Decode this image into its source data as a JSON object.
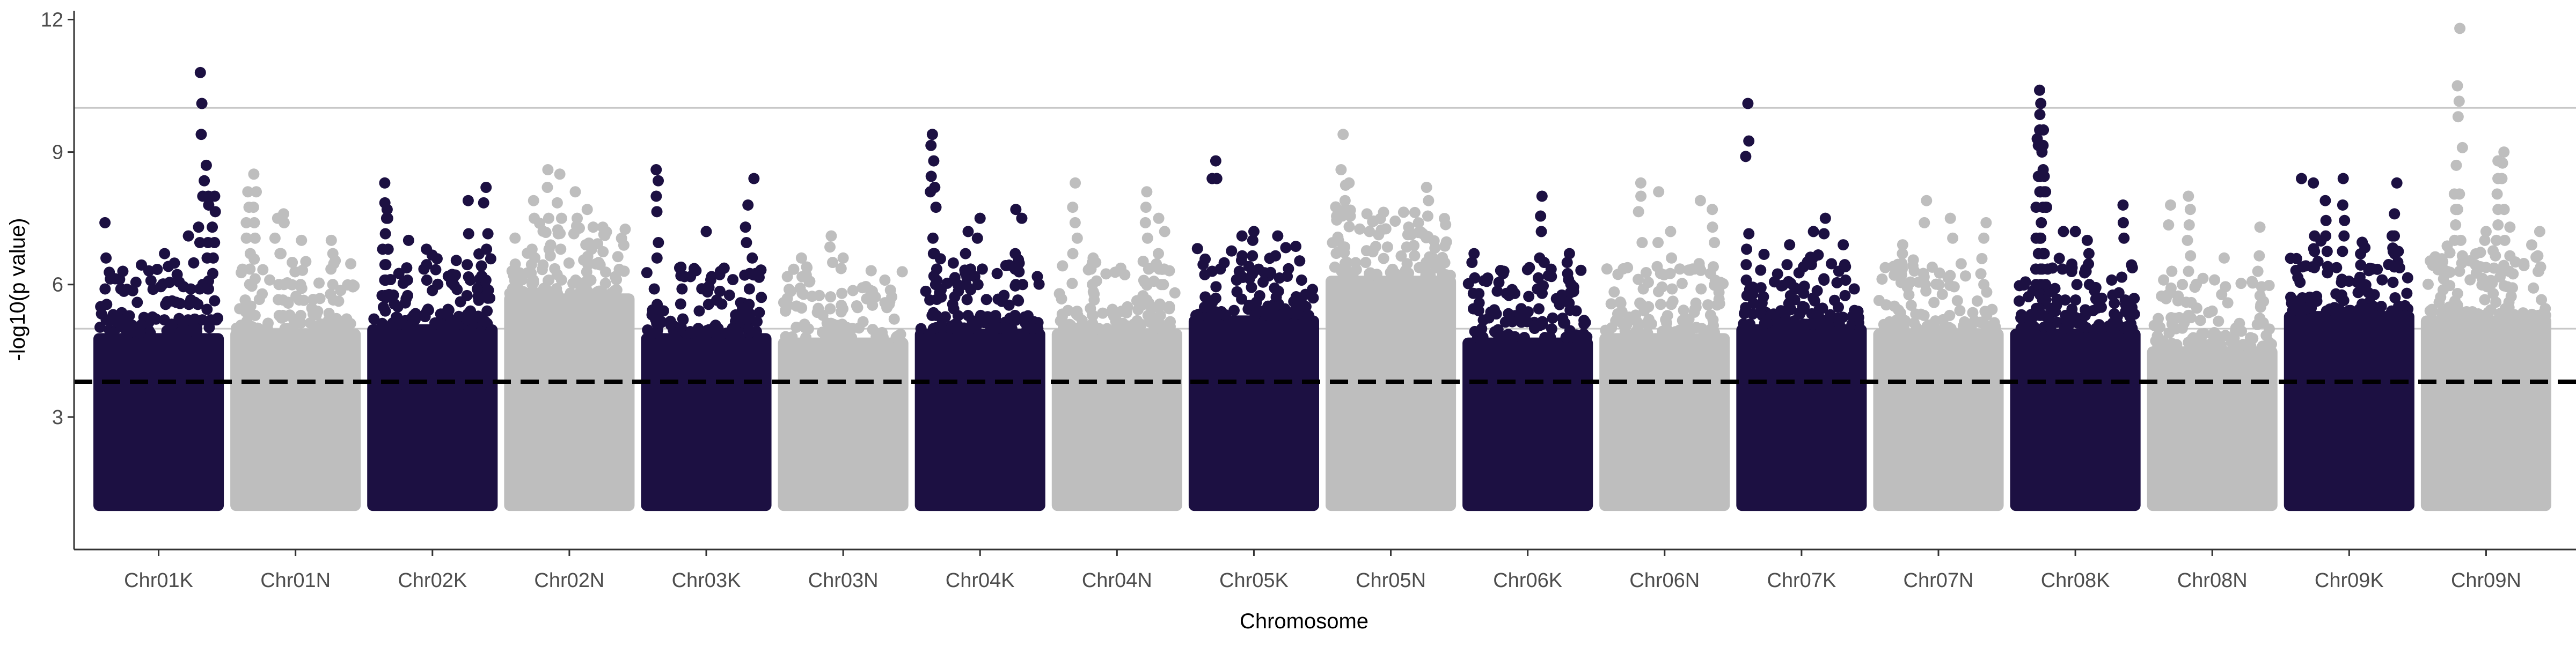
{
  "chart_data": {
    "type": "scatter",
    "title": "",
    "xlabel": "Chromosome",
    "ylabel": "-log10(p value)",
    "ylim": [
      0,
      12.2
    ],
    "yticks": [
      3,
      6,
      9,
      12
    ],
    "grid": false,
    "legend": "none",
    "colors": {
      "dark": "#1c1042",
      "light": "#bebebe",
      "threshold_line": "#000000",
      "reference_line": "#c8c8c8"
    },
    "thresholds": {
      "dashed": 3.8,
      "upper_reference": 10.0,
      "lower_reference": 5.0
    },
    "point_floor": 1.0,
    "categories": [
      "Chr01K",
      "Chr01N",
      "Chr02K",
      "Chr02N",
      "Chr03K",
      "Chr03N",
      "Chr04K",
      "Chr04N",
      "Chr05K",
      "Chr05N",
      "Chr06K",
      "Chr06N",
      "Chr07K",
      "Chr07N",
      "Chr08K",
      "Chr08N",
      "Chr09K",
      "Chr09N"
    ],
    "series": [
      {
        "chromosome": "Chr01K",
        "color": "dark",
        "dense_top": 4.9,
        "peaks": [
          [
            0.05,
            7.4
          ],
          [
            0.2,
            6.3
          ],
          [
            0.55,
            6.7
          ],
          [
            0.75,
            7.1
          ],
          [
            0.85,
            10.8
          ],
          [
            0.9,
            8.7
          ],
          [
            0.92,
            7.8
          ],
          [
            0.97,
            8.0
          ]
        ]
      },
      {
        "chromosome": "Chr01N",
        "color": "light",
        "dense_top": 5.0,
        "peaks": [
          [
            0.1,
            8.1
          ],
          [
            0.15,
            8.5
          ],
          [
            0.35,
            7.5
          ],
          [
            0.4,
            7.6
          ],
          [
            0.55,
            7.0
          ],
          [
            0.8,
            7.0
          ]
        ]
      },
      {
        "chromosome": "Chr02K",
        "color": "dark",
        "dense_top": 5.1,
        "peaks": [
          [
            0.1,
            8.3
          ],
          [
            0.12,
            7.7
          ],
          [
            0.3,
            7.0
          ],
          [
            0.45,
            6.8
          ],
          [
            0.8,
            7.9
          ],
          [
            0.95,
            8.2
          ]
        ]
      },
      {
        "chromosome": "Chr02N",
        "color": "light",
        "dense_top": 5.8,
        "peaks": [
          [
            0.2,
            7.9
          ],
          [
            0.32,
            8.6
          ],
          [
            0.42,
            8.5
          ],
          [
            0.55,
            8.1
          ],
          [
            0.65,
            7.7
          ],
          [
            0.7,
            7.3
          ]
        ]
      },
      {
        "chromosome": "Chr03K",
        "color": "dark",
        "dense_top": 4.9,
        "peaks": [
          [
            0.08,
            8.6
          ],
          [
            0.3,
            6.2
          ],
          [
            0.5,
            7.2
          ],
          [
            0.85,
            7.8
          ],
          [
            0.9,
            8.4
          ]
        ]
      },
      {
        "chromosome": "Chr03N",
        "color": "light",
        "dense_top": 4.8,
        "peaks": [
          [
            0.15,
            6.6
          ],
          [
            0.4,
            7.1
          ],
          [
            0.5,
            6.6
          ],
          [
            0.85,
            6.1
          ]
        ]
      },
      {
        "chromosome": "Chr04K",
        "color": "dark",
        "dense_top": 5.0,
        "peaks": [
          [
            0.1,
            9.4
          ],
          [
            0.12,
            8.2
          ],
          [
            0.4,
            7.2
          ],
          [
            0.5,
            7.5
          ],
          [
            0.8,
            7.7
          ],
          [
            0.85,
            7.5
          ]
        ]
      },
      {
        "chromosome": "Chr04N",
        "color": "light",
        "dense_top": 5.0,
        "peaks": [
          [
            0.15,
            8.3
          ],
          [
            0.3,
            6.6
          ],
          [
            0.75,
            8.1
          ],
          [
            0.85,
            7.5
          ],
          [
            0.9,
            7.2
          ]
        ]
      },
      {
        "chromosome": "Chr05K",
        "color": "dark",
        "dense_top": 5.3,
        "peaks": [
          [
            0.18,
            8.8
          ],
          [
            0.15,
            8.4
          ],
          [
            0.4,
            7.1
          ],
          [
            0.5,
            7.2
          ],
          [
            0.7,
            7.1
          ],
          [
            0.9,
            6.1
          ]
        ]
      },
      {
        "chromosome": "Chr05N",
        "color": "light",
        "dense_top": 6.2,
        "peaks": [
          [
            0.1,
            9.4
          ],
          [
            0.15,
            8.3
          ],
          [
            0.3,
            7.6
          ],
          [
            0.65,
            7.3
          ],
          [
            0.8,
            8.2
          ]
        ]
      },
      {
        "chromosome": "Chr06K",
        "color": "dark",
        "dense_top": 4.8,
        "peaks": [
          [
            0.05,
            6.7
          ],
          [
            0.3,
            6.3
          ],
          [
            0.6,
            6.6
          ],
          [
            0.62,
            8.0
          ],
          [
            0.85,
            6.7
          ]
        ]
      },
      {
        "chromosome": "Chr06N",
        "color": "light",
        "dense_top": 4.9,
        "peaks": [
          [
            0.3,
            8.3
          ],
          [
            0.45,
            8.1
          ],
          [
            0.55,
            7.2
          ],
          [
            0.8,
            7.9
          ],
          [
            0.9,
            7.7
          ]
        ]
      },
      {
        "chromosome": "Chr07K",
        "color": "dark",
        "dense_top": 5.1,
        "peaks": [
          [
            0.05,
            10.1
          ],
          [
            0.4,
            6.9
          ],
          [
            0.6,
            7.2
          ],
          [
            0.7,
            7.5
          ],
          [
            0.85,
            6.9
          ]
        ]
      },
      {
        "chromosome": "Chr07N",
        "color": "light",
        "dense_top": 5.0,
        "peaks": [
          [
            0.2,
            6.9
          ],
          [
            0.4,
            7.9
          ],
          [
            0.6,
            7.5
          ],
          [
            0.9,
            7.4
          ]
        ]
      },
      {
        "chromosome": "Chr08K",
        "color": "dark",
        "dense_top": 5.0,
        "peaks": [
          [
            0.18,
            9.3
          ],
          [
            0.2,
            10.4
          ],
          [
            0.21,
            10.1
          ],
          [
            0.22,
            9.0
          ],
          [
            0.23,
            8.6
          ],
          [
            0.25,
            8.1
          ],
          [
            0.4,
            7.2
          ],
          [
            0.5,
            7.2
          ],
          [
            0.6,
            7.0
          ],
          [
            0.9,
            7.8
          ]
        ]
      },
      {
        "chromosome": "Chr08N",
        "color": "light",
        "dense_top": 4.6,
        "peaks": [
          [
            0.15,
            7.8
          ],
          [
            0.3,
            8.0
          ],
          [
            0.6,
            6.6
          ],
          [
            0.9,
            7.3
          ]
        ]
      },
      {
        "chromosome": "Chr09K",
        "color": "dark",
        "dense_top": 5.4,
        "peaks": [
          [
            0.1,
            8.4
          ],
          [
            0.2,
            8.3
          ],
          [
            0.3,
            7.9
          ],
          [
            0.45,
            8.4
          ],
          [
            0.9,
            8.3
          ],
          [
            0.88,
            7.6
          ]
        ]
      },
      {
        "chromosome": "Chr09N",
        "color": "light",
        "dense_top": 5.3,
        "peaks": [
          [
            0.28,
            11.8
          ],
          [
            0.25,
            8.7
          ],
          [
            0.5,
            7.2
          ],
          [
            0.6,
            8.8
          ],
          [
            0.65,
            9.0
          ],
          [
            0.7,
            7.3
          ],
          [
            0.95,
            7.2
          ]
        ]
      }
    ]
  }
}
